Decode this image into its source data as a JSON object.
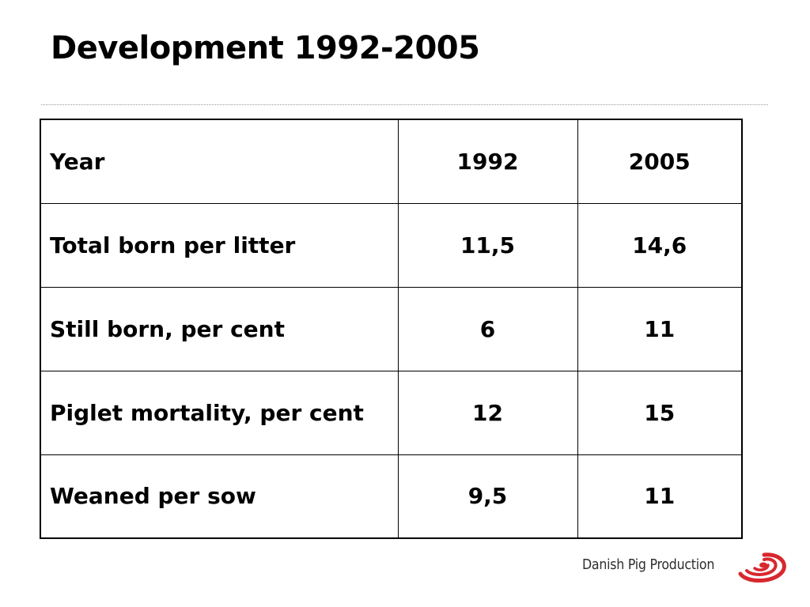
{
  "slide": {
    "title": "Development 1992-2005"
  },
  "table": {
    "rows": [
      {
        "label": "Year",
        "v1992": "1992",
        "v2005": "2005"
      },
      {
        "label": "Total born per litter",
        "v1992": "11,5",
        "v2005": "14,6"
      },
      {
        "label": "Still born, per cent",
        "v1992": "6",
        "v2005": "11"
      },
      {
        "label": "Piglet mortality, per cent",
        "v1992": "12",
        "v2005": "15"
      },
      {
        "label": "Weaned per sow",
        "v1992": "9,5",
        "v2005": "11"
      }
    ]
  },
  "footer": {
    "brand_name": "Danish Pig Production",
    "logo_icon": "danish-pig-production-logo",
    "logo_color": "#d7282f"
  }
}
